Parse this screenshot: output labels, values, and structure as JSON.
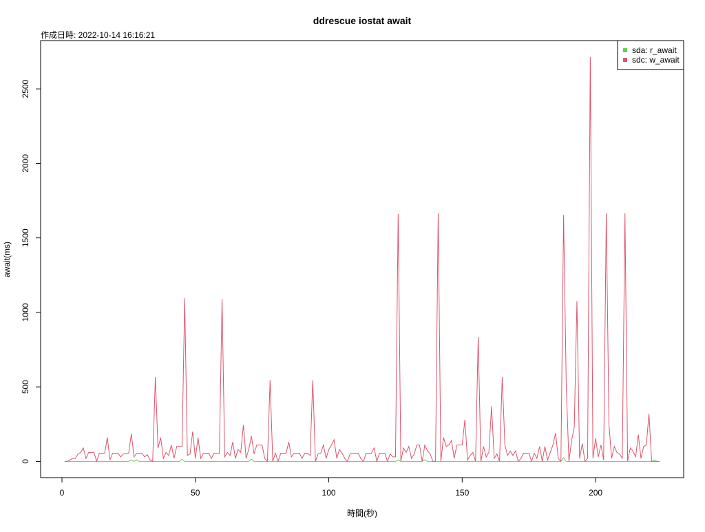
{
  "chart_data": {
    "type": "line",
    "title": "ddrescue iostat await",
    "subtitle": "作成日時: 2022-10-14 16:16:21",
    "x_label": "時間(秒)",
    "y_label": "await(ms)",
    "x": [
      1,
      2,
      3,
      4,
      5,
      6,
      7,
      8,
      9,
      10,
      11,
      12,
      13,
      14,
      15,
      16,
      17,
      18,
      19,
      20,
      21,
      22,
      23,
      24,
      25,
      26,
      27,
      28,
      29,
      30,
      31,
      32,
      33,
      34,
      35,
      36,
      37,
      38,
      39,
      40,
      41,
      42,
      43,
      44,
      45,
      46,
      47,
      48,
      49,
      50,
      51,
      52,
      53,
      54,
      55,
      56,
      57,
      58,
      59,
      60,
      61,
      62,
      63,
      64,
      65,
      66,
      67,
      68,
      69,
      70,
      71,
      72,
      73,
      74,
      75,
      76,
      77,
      78,
      79,
      80,
      81,
      82,
      83,
      84,
      85,
      86,
      87,
      88,
      89,
      90,
      91,
      92,
      93,
      94,
      95,
      96,
      97,
      98,
      99,
      100,
      101,
      102,
      103,
      104,
      105,
      106,
      107,
      108,
      109,
      110,
      111,
      112,
      113,
      114,
      115,
      116,
      117,
      118,
      119,
      120,
      121,
      122,
      123,
      124,
      125,
      126,
      127,
      128,
      129,
      130,
      131,
      132,
      133,
      134,
      135,
      136,
      137,
      138,
      139,
      140,
      141,
      142,
      143,
      144,
      145,
      146,
      147,
      148,
      149,
      150,
      151,
      152,
      153,
      154,
      155,
      156,
      157,
      158,
      159,
      160,
      161,
      162,
      163,
      164,
      165,
      166,
      167,
      168,
      169,
      170,
      171,
      172,
      173,
      174,
      175,
      176,
      177,
      178,
      179,
      180,
      181,
      182,
      183,
      184,
      185,
      186,
      187,
      188,
      189,
      190,
      191,
      192,
      193,
      194,
      195,
      196,
      197,
      198,
      199,
      200,
      201,
      202,
      203,
      204,
      205,
      206,
      207,
      208,
      209,
      210,
      211,
      212,
      213,
      214,
      215,
      216,
      217,
      218,
      219,
      220,
      221,
      222,
      223,
      224
    ],
    "series": [
      {
        "name": "sda: r_await",
        "color": "#61D04F",
        "values": [
          0,
          0,
          0,
          0,
          0,
          0,
          0,
          0,
          0,
          0,
          0,
          0,
          0,
          0,
          0,
          0,
          0,
          0,
          0,
          0,
          0,
          0,
          0,
          0,
          0,
          10,
          0,
          10,
          0,
          0,
          0,
          0,
          0,
          0,
          0,
          0,
          0,
          0,
          0,
          0,
          0,
          0,
          0,
          0,
          15,
          0,
          0,
          0,
          0,
          0,
          0,
          0,
          0,
          0,
          0,
          0,
          0,
          0,
          0,
          0,
          0,
          0,
          0,
          0,
          0,
          0,
          0,
          0,
          0,
          0,
          15,
          0,
          0,
          0,
          0,
          0,
          0,
          0,
          0,
          0,
          0,
          0,
          0,
          0,
          0,
          0,
          0,
          0,
          0,
          0,
          0,
          0,
          0,
          0,
          0,
          0,
          0,
          0,
          0,
          0,
          0,
          0,
          0,
          0,
          0,
          0,
          0,
          0,
          0,
          0,
          0,
          0,
          0,
          0,
          0,
          0,
          0,
          0,
          0,
          0,
          0,
          0,
          0,
          0,
          0,
          10,
          0,
          0,
          0,
          0,
          0,
          0,
          0,
          0,
          0,
          10,
          0,
          0,
          0,
          0,
          0,
          0,
          0,
          0,
          0,
          0,
          0,
          0,
          0,
          0,
          0,
          0,
          0,
          0,
          0,
          0,
          0,
          0,
          0,
          0,
          0,
          0,
          0,
          0,
          0,
          0,
          0,
          0,
          0,
          0,
          0,
          0,
          0,
          0,
          0,
          0,
          0,
          0,
          0,
          0,
          0,
          0,
          0,
          0,
          0,
          0,
          0,
          25,
          0,
          0,
          0,
          0,
          0,
          0,
          0,
          0,
          0,
          0,
          0,
          0,
          0,
          0,
          0,
          0,
          0,
          0,
          0,
          0,
          0,
          0,
          0,
          0,
          0,
          0,
          0,
          0,
          0,
          0,
          0,
          0,
          0,
          10,
          0,
          0
        ]
      },
      {
        "name": "sdc: w_await",
        "color": "#DF536B",
        "values": [
          0,
          0,
          10,
          20,
          20,
          50,
          60,
          90,
          20,
          60,
          60,
          60,
          0,
          55,
          55,
          55,
          160,
          10,
          55,
          55,
          55,
          30,
          50,
          55,
          55,
          185,
          30,
          55,
          55,
          55,
          30,
          45,
          10,
          0,
          565,
          90,
          160,
          20,
          60,
          40,
          110,
          20,
          100,
          100,
          100,
          1095,
          40,
          50,
          200,
          20,
          160,
          20,
          55,
          55,
          55,
          20,
          55,
          55,
          55,
          1090,
          30,
          60,
          40,
          130,
          20,
          80,
          60,
          245,
          20,
          80,
          170,
          50,
          110,
          110,
          110,
          20,
          0,
          545,
          0,
          55,
          0,
          55,
          55,
          55,
          130,
          30,
          55,
          55,
          55,
          20,
          55,
          55,
          40,
          545,
          0,
          50,
          55,
          110,
          20,
          80,
          110,
          145,
          20,
          80,
          55,
          20,
          0,
          50,
          55,
          55,
          55,
          20,
          0,
          55,
          55,
          55,
          90,
          0,
          55,
          55,
          55,
          0,
          50,
          30,
          30,
          1660,
          0,
          90,
          60,
          100,
          20,
          50,
          110,
          110,
          0,
          110,
          70,
          50,
          0,
          0,
          1665,
          0,
          160,
          100,
          110,
          140,
          20,
          110,
          110,
          110,
          280,
          10,
          40,
          60,
          0,
          835,
          0,
          100,
          30,
          60,
          370,
          20,
          50,
          0,
          565,
          110,
          40,
          70,
          40,
          70,
          0,
          20,
          55,
          55,
          55,
          0,
          55,
          20,
          100,
          0,
          100,
          10,
          60,
          110,
          190,
          20,
          0,
          1655,
          500,
          0,
          140,
          230,
          1075,
          20,
          120,
          0,
          20,
          2715,
          20,
          155,
          30,
          110,
          10,
          1665,
          250,
          20,
          100,
          60,
          50,
          20,
          1665,
          0,
          90,
          70,
          30,
          180,
          20,
          100,
          110,
          320,
          0,
          0,
          0,
          0
        ]
      }
    ],
    "xlim": [
      -8,
      233
    ],
    "ylim": [
      -109,
      2824
    ],
    "xticks": [
      0,
      50,
      100,
      150,
      200
    ],
    "yticks": [
      0,
      500,
      1000,
      1500,
      2000,
      2500
    ],
    "legend_position": "top-right",
    "grid": false
  }
}
